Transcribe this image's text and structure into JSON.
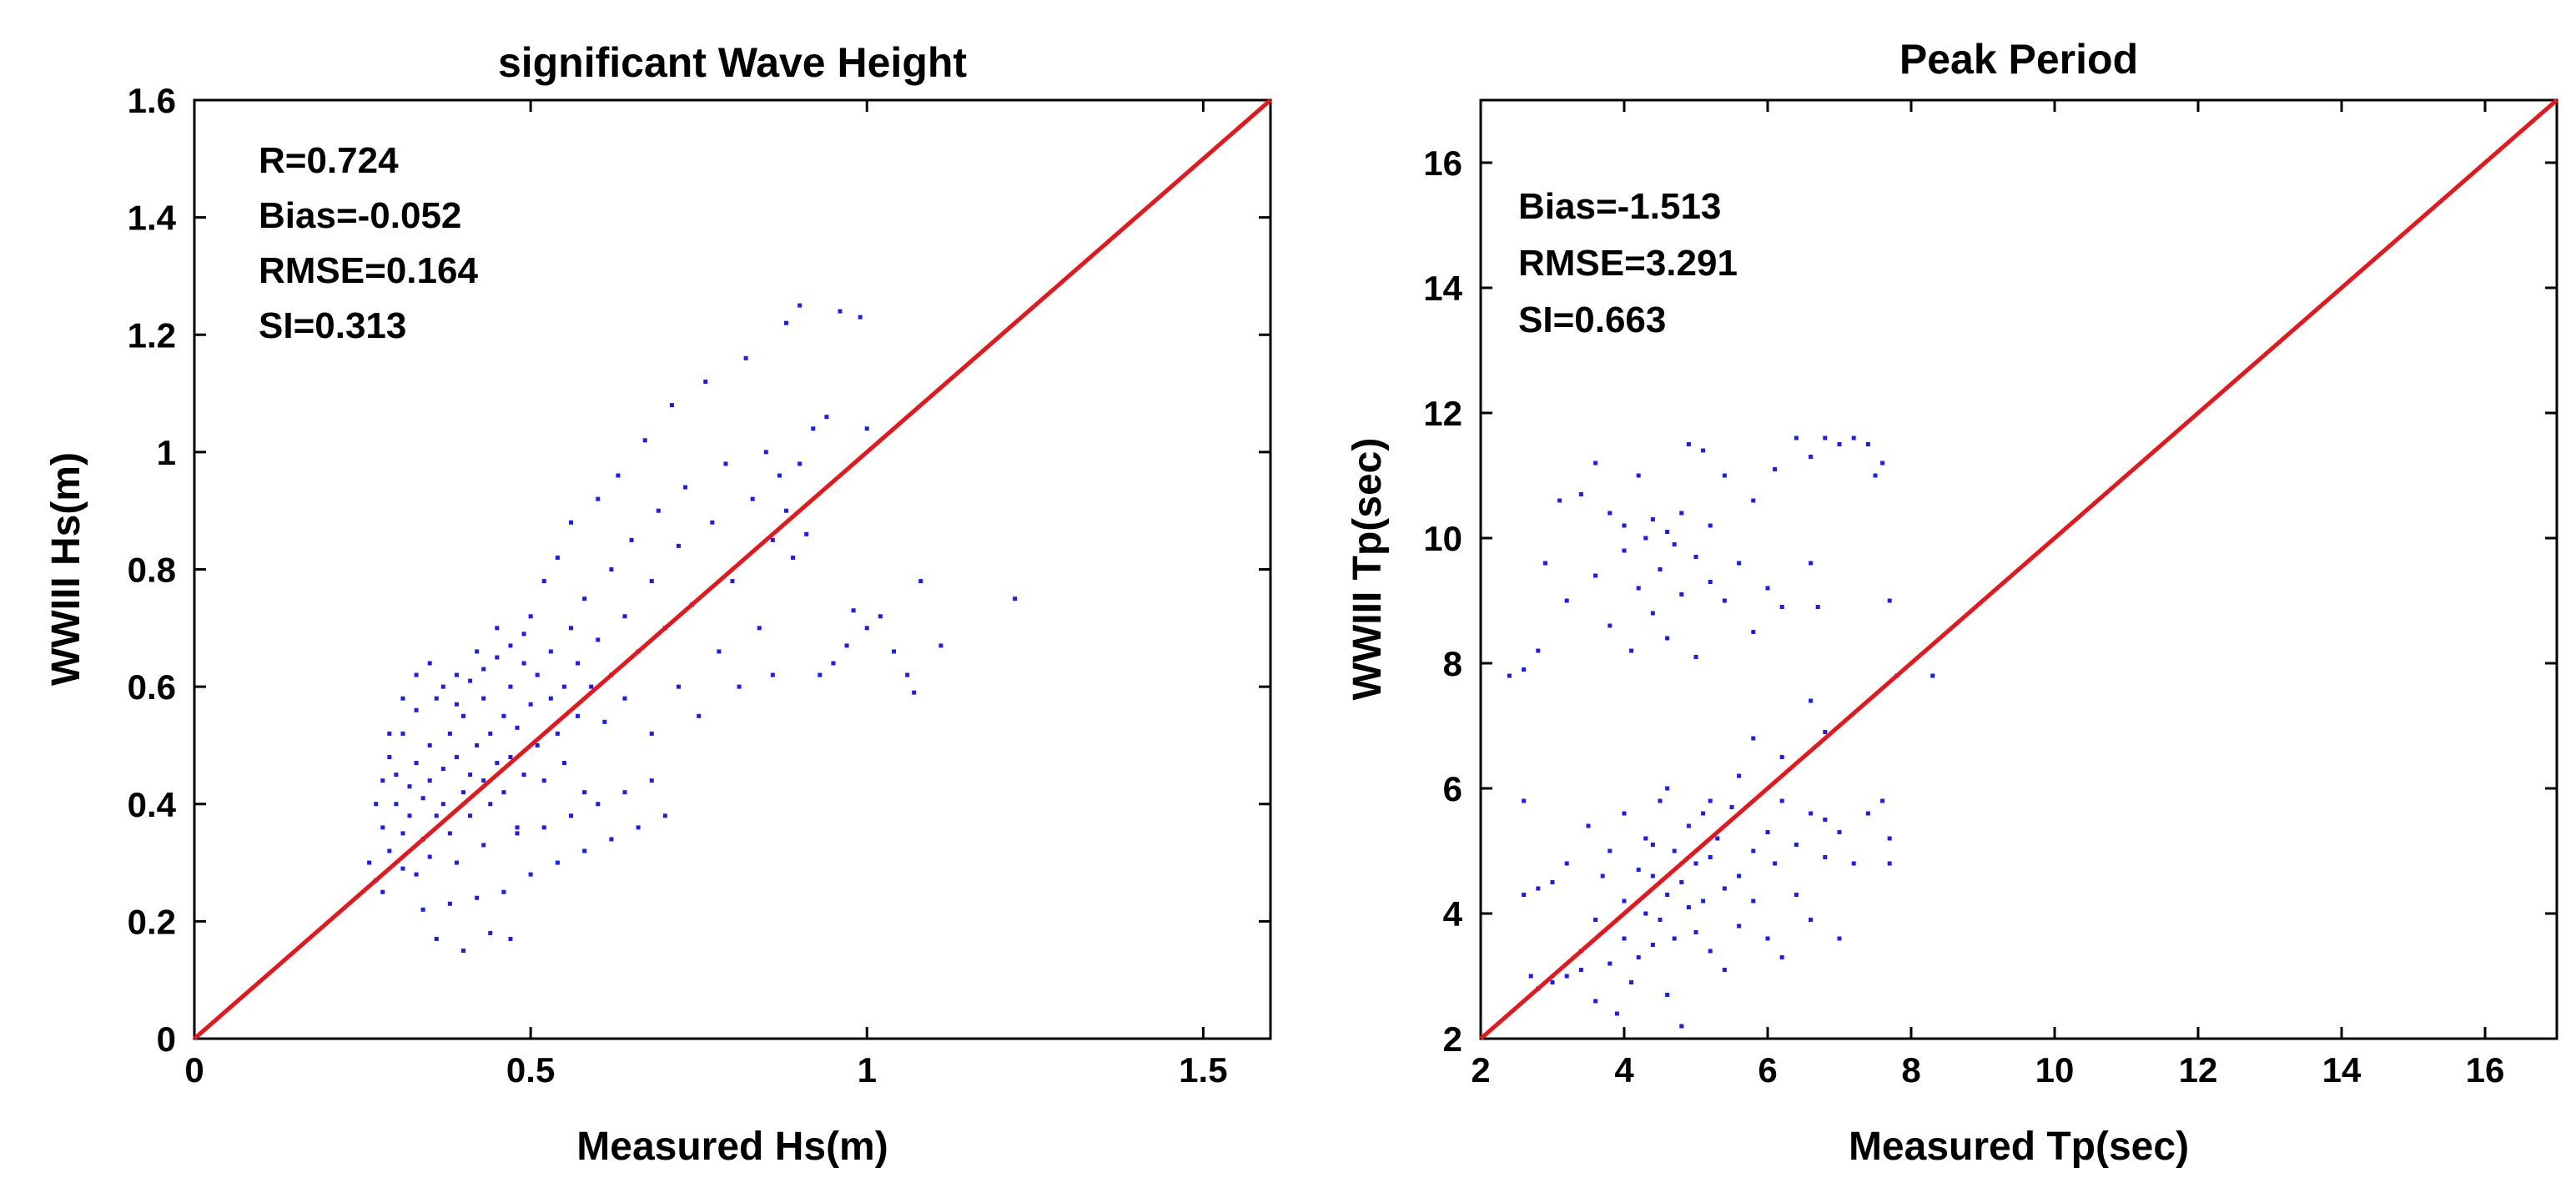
{
  "chart_data": [
    {
      "type": "scatter",
      "title": "significant Wave Height",
      "xlabel": "Measured  Hs(m)",
      "ylabel": "WWIII Hs(m)",
      "xlim": [
        0,
        1.6
      ],
      "ylim": [
        0,
        1.6
      ],
      "xticks": [
        "0",
        "0.5",
        "1",
        "1.5"
      ],
      "xtick_values": [
        0,
        0.5,
        1,
        1.5
      ],
      "yticks": [
        "0",
        "0.2",
        "0.4",
        "0.6",
        "0.8",
        "1",
        "1.2",
        "1.4",
        "1.6"
      ],
      "ytick_values": [
        0,
        0.2,
        0.4,
        0.6,
        0.8,
        1,
        1.2,
        1.4,
        1.6
      ],
      "stats": [
        "R=0.724",
        "Bias=-0.052",
        "RMSE=0.164",
        "SI=0.313"
      ],
      "line": {
        "x": [
          0,
          1.6
        ],
        "y": [
          0,
          1.6
        ],
        "color": "#e8151b"
      },
      "point_color": "#1a1aff",
      "points": [
        [
          0.26,
          0.3
        ],
        [
          0.27,
          0.27
        ],
        [
          0.28,
          0.25
        ],
        [
          0.28,
          0.36
        ],
        [
          0.28,
          0.44
        ],
        [
          0.29,
          0.48
        ],
        [
          0.29,
          0.32
        ],
        [
          0.3,
          0.4
        ],
        [
          0.3,
          0.45
        ],
        [
          0.31,
          0.35
        ],
        [
          0.31,
          0.52
        ],
        [
          0.32,
          0.43
        ],
        [
          0.32,
          0.38
        ],
        [
          0.33,
          0.47
        ],
        [
          0.33,
          0.56
        ],
        [
          0.34,
          0.41
        ],
        [
          0.34,
          0.34
        ],
        [
          0.35,
          0.5
        ],
        [
          0.35,
          0.44
        ],
        [
          0.36,
          0.38
        ],
        [
          0.36,
          0.58
        ],
        [
          0.37,
          0.46
        ],
        [
          0.37,
          0.4
        ],
        [
          0.38,
          0.52
        ],
        [
          0.38,
          0.35
        ],
        [
          0.39,
          0.48
        ],
        [
          0.39,
          0.62
        ],
        [
          0.4,
          0.42
        ],
        [
          0.4,
          0.55
        ],
        [
          0.41,
          0.45
        ],
        [
          0.41,
          0.38
        ],
        [
          0.42,
          0.5
        ],
        [
          0.42,
          0.66
        ],
        [
          0.43,
          0.44
        ],
        [
          0.43,
          0.58
        ],
        [
          0.44,
          0.4
        ],
        [
          0.44,
          0.52
        ],
        [
          0.45,
          0.47
        ],
        [
          0.45,
          0.7
        ],
        [
          0.46,
          0.55
        ],
        [
          0.46,
          0.42
        ],
        [
          0.47,
          0.6
        ],
        [
          0.47,
          0.48
        ],
        [
          0.48,
          0.53
        ],
        [
          0.48,
          0.36
        ],
        [
          0.49,
          0.64
        ],
        [
          0.49,
          0.45
        ],
        [
          0.5,
          0.57
        ],
        [
          0.5,
          0.72
        ],
        [
          0.51,
          0.5
        ],
        [
          0.51,
          0.62
        ],
        [
          0.52,
          0.44
        ],
        [
          0.52,
          0.78
        ],
        [
          0.53,
          0.58
        ],
        [
          0.53,
          0.66
        ],
        [
          0.54,
          0.52
        ],
        [
          0.54,
          0.82
        ],
        [
          0.55,
          0.6
        ],
        [
          0.55,
          0.47
        ],
        [
          0.56,
          0.7
        ],
        [
          0.56,
          0.88
        ],
        [
          0.57,
          0.55
        ],
        [
          0.57,
          0.64
        ],
        [
          0.58,
          0.75
        ],
        [
          0.58,
          0.42
        ],
        [
          0.59,
          0.6
        ],
        [
          0.6,
          0.92
        ],
        [
          0.6,
          0.68
        ],
        [
          0.61,
          0.54
        ],
        [
          0.62,
          0.8
        ],
        [
          0.62,
          0.62
        ],
        [
          0.63,
          0.96
        ],
        [
          0.64,
          0.72
        ],
        [
          0.64,
          0.58
        ],
        [
          0.65,
          0.85
        ],
        [
          0.66,
          0.66
        ],
        [
          0.67,
          1.02
        ],
        [
          0.68,
          0.78
        ],
        [
          0.68,
          0.52
        ],
        [
          0.69,
          0.9
        ],
        [
          0.7,
          0.7
        ],
        [
          0.71,
          1.08
        ],
        [
          0.72,
          0.84
        ],
        [
          0.72,
          0.6
        ],
        [
          0.73,
          0.94
        ],
        [
          0.74,
          0.74
        ],
        [
          0.75,
          0.55
        ],
        [
          0.76,
          1.12
        ],
        [
          0.77,
          0.88
        ],
        [
          0.78,
          0.66
        ],
        [
          0.79,
          0.98
        ],
        [
          0.8,
          0.78
        ],
        [
          0.81,
          0.6
        ],
        [
          0.82,
          1.16
        ],
        [
          0.83,
          0.92
        ],
        [
          0.84,
          0.7
        ],
        [
          0.85,
          1.0
        ],
        [
          0.86,
          0.85
        ],
        [
          0.86,
          0.62
        ],
        [
          0.87,
          0.96
        ],
        [
          0.88,
          1.22
        ],
        [
          0.88,
          0.9
        ],
        [
          0.89,
          0.82
        ],
        [
          0.9,
          1.25
        ],
        [
          0.9,
          0.98
        ],
        [
          0.91,
          0.86
        ],
        [
          0.92,
          1.04
        ],
        [
          0.93,
          0.62
        ],
        [
          0.94,
          1.06
        ],
        [
          0.95,
          0.64
        ],
        [
          0.96,
          1.24
        ],
        [
          0.97,
          0.67
        ],
        [
          0.98,
          0.73
        ],
        [
          0.99,
          1.23
        ],
        [
          1.0,
          1.04
        ],
        [
          1.0,
          0.7
        ],
        [
          1.02,
          0.72
        ],
        [
          1.04,
          0.66
        ],
        [
          1.06,
          0.62
        ],
        [
          1.07,
          0.59
        ],
        [
          1.08,
          0.78
        ],
        [
          1.11,
          0.67
        ],
        [
          1.22,
          0.75
        ],
        [
          0.36,
          0.17
        ],
        [
          0.4,
          0.15
        ],
        [
          0.44,
          0.18
        ],
        [
          0.47,
          0.17
        ],
        [
          0.34,
          0.22
        ],
        [
          0.38,
          0.23
        ],
        [
          0.42,
          0.24
        ],
        [
          0.46,
          0.25
        ],
        [
          0.5,
          0.28
        ],
        [
          0.54,
          0.3
        ],
        [
          0.58,
          0.32
        ],
        [
          0.62,
          0.34
        ],
        [
          0.66,
          0.36
        ],
        [
          0.7,
          0.38
        ],
        [
          0.33,
          0.28
        ],
        [
          0.31,
          0.29
        ],
        [
          0.35,
          0.31
        ],
        [
          0.39,
          0.3
        ],
        [
          0.43,
          0.33
        ],
        [
          0.48,
          0.35
        ],
        [
          0.52,
          0.36
        ],
        [
          0.56,
          0.38
        ],
        [
          0.6,
          0.4
        ],
        [
          0.64,
          0.42
        ],
        [
          0.68,
          0.44
        ],
        [
          0.27,
          0.4
        ],
        [
          0.29,
          0.52
        ],
        [
          0.31,
          0.58
        ],
        [
          0.33,
          0.62
        ],
        [
          0.35,
          0.64
        ],
        [
          0.37,
          0.6
        ],
        [
          0.39,
          0.57
        ],
        [
          0.41,
          0.61
        ],
        [
          0.43,
          0.63
        ],
        [
          0.45,
          0.65
        ],
        [
          0.47,
          0.67
        ],
        [
          0.49,
          0.69
        ]
      ]
    },
    {
      "type": "scatter",
      "title": "Peak Period",
      "xlabel": "Measured  Tp(sec)",
      "ylabel": "WWIII Tp(sec)",
      "xlim": [
        2,
        17
      ],
      "ylim": [
        2,
        17
      ],
      "xticks": [
        "2",
        "4",
        "6",
        "8",
        "10",
        "12",
        "14",
        "16"
      ],
      "xtick_values": [
        2,
        4,
        6,
        8,
        10,
        12,
        14,
        16
      ],
      "yticks": [
        "2",
        "4",
        "6",
        "8",
        "10",
        "12",
        "14",
        "16"
      ],
      "ytick_values": [
        2,
        4,
        6,
        8,
        10,
        12,
        14,
        16
      ],
      "stats": [
        "Bias=-1.513",
        "RMSE=3.291",
        "SI=0.663"
      ],
      "line": {
        "x": [
          2,
          17
        ],
        "y": [
          2,
          17
        ],
        "color": "#e8151b"
      },
      "point_color": "#1a1aff",
      "points": [
        [
          2.4,
          7.8
        ],
        [
          2.6,
          7.9
        ],
        [
          2.8,
          8.2
        ],
        [
          2.9,
          9.6
        ],
        [
          3.1,
          10.6
        ],
        [
          3.2,
          9.0
        ],
        [
          3.4,
          10.7
        ],
        [
          3.6,
          11.2
        ],
        [
          3.6,
          9.4
        ],
        [
          3.8,
          10.4
        ],
        [
          3.8,
          8.6
        ],
        [
          4.0,
          9.8
        ],
        [
          4.0,
          10.2
        ],
        [
          4.1,
          8.2
        ],
        [
          4.2,
          11.0
        ],
        [
          4.2,
          9.2
        ],
        [
          4.3,
          10.0
        ],
        [
          4.4,
          8.8
        ],
        [
          4.4,
          10.3
        ],
        [
          4.5,
          9.5
        ],
        [
          4.6,
          10.1
        ],
        [
          4.6,
          8.4
        ],
        [
          4.7,
          9.9
        ],
        [
          4.8,
          10.4
        ],
        [
          4.8,
          9.1
        ],
        [
          4.9,
          11.5
        ],
        [
          5.0,
          9.7
        ],
        [
          5.0,
          8.1
        ],
        [
          5.1,
          11.4
        ],
        [
          5.2,
          9.3
        ],
        [
          5.2,
          10.2
        ],
        [
          5.4,
          9.0
        ],
        [
          5.4,
          11.0
        ],
        [
          5.6,
          9.6
        ],
        [
          5.8,
          10.6
        ],
        [
          5.8,
          8.5
        ],
        [
          6.0,
          9.2
        ],
        [
          6.1,
          11.1
        ],
        [
          6.2,
          8.9
        ],
        [
          6.4,
          11.6
        ],
        [
          6.6,
          11.3
        ],
        [
          6.6,
          9.6
        ],
        [
          6.7,
          8.9
        ],
        [
          6.8,
          11.6
        ],
        [
          7.0,
          11.5
        ],
        [
          7.2,
          11.6
        ],
        [
          7.4,
          11.5
        ],
        [
          7.6,
          11.2
        ],
        [
          7.7,
          9.0
        ],
        [
          7.5,
          11.0
        ],
        [
          2.6,
          5.8
        ],
        [
          2.6,
          4.3
        ],
        [
          2.8,
          4.4
        ],
        [
          2.7,
          3.0
        ],
        [
          3.0,
          4.5
        ],
        [
          3.2,
          4.8
        ],
        [
          3.4,
          3.4
        ],
        [
          3.5,
          5.4
        ],
        [
          3.6,
          2.6
        ],
        [
          3.6,
          3.9
        ],
        [
          3.7,
          4.6
        ],
        [
          3.8,
          3.2
        ],
        [
          3.8,
          5.0
        ],
        [
          3.9,
          2.4
        ],
        [
          4.0,
          4.2
        ],
        [
          4.0,
          3.6
        ],
        [
          4.0,
          5.6
        ],
        [
          4.1,
          2.9
        ],
        [
          4.2,
          4.7
        ],
        [
          4.2,
          3.3
        ],
        [
          4.3,
          5.2
        ],
        [
          4.3,
          4.0
        ],
        [
          4.4,
          3.5
        ],
        [
          4.4,
          4.6
        ],
        [
          4.5,
          5.8
        ],
        [
          4.5,
          3.9
        ],
        [
          4.6,
          4.3
        ],
        [
          4.6,
          2.7
        ],
        [
          4.7,
          5.0
        ],
        [
          4.7,
          3.6
        ],
        [
          4.8,
          4.5
        ],
        [
          4.8,
          2.2
        ],
        [
          4.9,
          5.4
        ],
        [
          4.9,
          4.1
        ],
        [
          5.0,
          3.7
        ],
        [
          5.0,
          4.8
        ],
        [
          5.1,
          5.6
        ],
        [
          5.1,
          4.2
        ],
        [
          5.2,
          3.4
        ],
        [
          5.2,
          4.9
        ],
        [
          5.3,
          5.2
        ],
        [
          5.4,
          4.4
        ],
        [
          5.4,
          3.1
        ],
        [
          5.5,
          5.7
        ],
        [
          5.6,
          4.6
        ],
        [
          5.6,
          3.8
        ],
        [
          5.8,
          5.0
        ],
        [
          5.8,
          4.2
        ],
        [
          6.0,
          5.3
        ],
        [
          6.0,
          3.6
        ],
        [
          6.1,
          4.8
        ],
        [
          6.2,
          5.8
        ],
        [
          6.2,
          3.3
        ],
        [
          6.4,
          5.1
        ],
        [
          6.4,
          4.3
        ],
        [
          6.6,
          5.6
        ],
        [
          6.6,
          3.9
        ],
        [
          6.8,
          4.9
        ],
        [
          6.8,
          5.5
        ],
        [
          7.0,
          5.3
        ],
        [
          7.0,
          3.6
        ],
        [
          7.2,
          4.8
        ],
        [
          7.4,
          5.6
        ],
        [
          7.6,
          5.8
        ],
        [
          7.7,
          5.2
        ],
        [
          7.7,
          4.8
        ],
        [
          7.8,
          7.8
        ],
        [
          8.3,
          7.8
        ],
        [
          6.8,
          6.9
        ],
        [
          6.2,
          6.5
        ],
        [
          5.6,
          6.2
        ],
        [
          5.2,
          5.8
        ],
        [
          4.4,
          5.1
        ],
        [
          3.4,
          3.1
        ],
        [
          3.2,
          3.0
        ],
        [
          3.0,
          2.9
        ],
        [
          2.8,
          2.8
        ],
        [
          4.6,
          6.0
        ],
        [
          5.8,
          6.8
        ],
        [
          6.6,
          7.4
        ]
      ]
    }
  ]
}
